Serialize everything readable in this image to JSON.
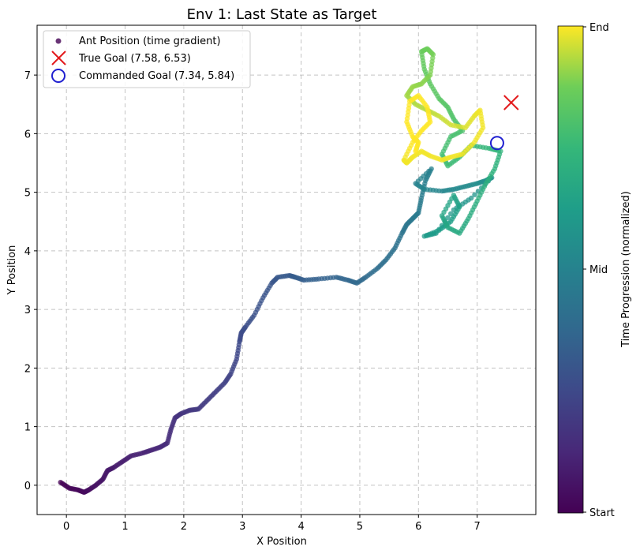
{
  "chart_data": {
    "type": "scatter",
    "title": "Env 1: Last State as Target",
    "xlabel": "X Position",
    "ylabel": "Y Position",
    "xlim": [
      -0.5,
      8.0
    ],
    "ylim": [
      -0.5,
      7.85
    ],
    "xticks": [
      "0",
      "1",
      "2",
      "3",
      "4",
      "5",
      "6",
      "7"
    ],
    "yticks": [
      "0",
      "1",
      "2",
      "3",
      "4",
      "5",
      "6",
      "7"
    ],
    "grid": true,
    "legend_position": "top-left",
    "colormap": "viridis",
    "colorbar": {
      "label": "Time Progression (normalized)",
      "ticks": [
        "Start",
        "Mid",
        "End"
      ]
    },
    "series": [
      {
        "name": "Ant Position (time gradient)",
        "marker": "circle",
        "color": "#440154",
        "x": [
          -0.1,
          0.05,
          0.2,
          0.3,
          0.38,
          0.5,
          0.62,
          0.7,
          0.8,
          0.95,
          1.1,
          1.3,
          1.45,
          1.6,
          1.72,
          1.78,
          1.85,
          1.95,
          2.1,
          2.25,
          2.4,
          2.55,
          2.7,
          2.8,
          2.9,
          2.95,
          2.98,
          3.05,
          3.2,
          3.35,
          3.5,
          3.6,
          3.8,
          3.9,
          4.05,
          4.3,
          4.6,
          4.8,
          4.95,
          5.1,
          5.3,
          5.45,
          5.6,
          5.72,
          5.8,
          5.9,
          6.0,
          6.05,
          6.12,
          6.22,
          5.95,
          6.1,
          6.4,
          6.6,
          6.8,
          7.0,
          7.15,
          7.25,
          6.9,
          6.6,
          6.3,
          6.1,
          6.35,
          6.55,
          6.7,
          6.6,
          6.4,
          6.5,
          6.7,
          6.85,
          7.0,
          7.15,
          7.3,
          7.4,
          7.2,
          6.9,
          6.7,
          6.5,
          6.4,
          6.55,
          6.75,
          6.6,
          6.5,
          6.35,
          6.2,
          6.1,
          6.05,
          6.15,
          6.25,
          6.2,
          6.05,
          5.9,
          5.8,
          5.95,
          6.15,
          6.35,
          6.55,
          6.8,
          6.95,
          7.05,
          7.1,
          6.95,
          6.75,
          6.55,
          6.4,
          6.2,
          6.05,
          5.9,
          5.8,
          5.75,
          5.9,
          6.05,
          6.2,
          6.15,
          6.0,
          5.85,
          5.8,
          5.9,
          6.0,
          5.95
        ],
        "y": [
          0.05,
          -0.05,
          -0.08,
          -0.12,
          -0.08,
          0.0,
          0.1,
          0.25,
          0.3,
          0.4,
          0.5,
          0.55,
          0.6,
          0.65,
          0.72,
          0.95,
          1.15,
          1.22,
          1.28,
          1.3,
          1.45,
          1.6,
          1.75,
          1.9,
          2.15,
          2.45,
          2.6,
          2.7,
          2.9,
          3.2,
          3.45,
          3.55,
          3.58,
          3.55,
          3.5,
          3.52,
          3.55,
          3.5,
          3.45,
          3.55,
          3.7,
          3.85,
          4.05,
          4.3,
          4.45,
          4.55,
          4.65,
          4.9,
          5.2,
          5.4,
          5.15,
          5.05,
          5.02,
          5.05,
          5.1,
          5.15,
          5.2,
          5.25,
          4.9,
          4.7,
          4.3,
          4.25,
          4.35,
          4.5,
          4.75,
          4.95,
          4.6,
          4.4,
          4.3,
          4.55,
          4.85,
          5.15,
          5.4,
          5.7,
          5.75,
          5.8,
          5.6,
          5.45,
          5.65,
          5.95,
          6.05,
          6.25,
          6.45,
          6.6,
          6.85,
          7.1,
          7.4,
          7.45,
          7.35,
          7.0,
          6.85,
          6.8,
          6.65,
          6.5,
          6.4,
          6.3,
          6.15,
          6.1,
          6.3,
          6.4,
          6.1,
          5.85,
          5.65,
          5.6,
          5.55,
          5.62,
          5.7,
          5.6,
          5.5,
          5.55,
          5.85,
          6.05,
          6.2,
          6.45,
          6.65,
          6.55,
          6.2,
          5.95,
          5.85,
          5.7
        ],
        "t": [
          0.0,
          0.01,
          0.02,
          0.03,
          0.04,
          0.05,
          0.06,
          0.07,
          0.08,
          0.09,
          0.1,
          0.11,
          0.12,
          0.13,
          0.14,
          0.15,
          0.16,
          0.17,
          0.18,
          0.19,
          0.2,
          0.21,
          0.22,
          0.23,
          0.24,
          0.25,
          0.26,
          0.27,
          0.28,
          0.29,
          0.3,
          0.31,
          0.32,
          0.33,
          0.34,
          0.35,
          0.36,
          0.37,
          0.38,
          0.39,
          0.4,
          0.41,
          0.42,
          0.43,
          0.44,
          0.45,
          0.46,
          0.47,
          0.48,
          0.49,
          0.5,
          0.51,
          0.52,
          0.53,
          0.54,
          0.55,
          0.56,
          0.57,
          0.58,
          0.59,
          0.6,
          0.61,
          0.62,
          0.63,
          0.64,
          0.65,
          0.66,
          0.67,
          0.68,
          0.69,
          0.7,
          0.71,
          0.72,
          0.73,
          0.74,
          0.75,
          0.76,
          0.77,
          0.78,
          0.79,
          0.8,
          0.81,
          0.82,
          0.83,
          0.84,
          0.85,
          0.86,
          0.87,
          0.88,
          0.89,
          0.9,
          0.91,
          0.92,
          0.93,
          0.94,
          0.95,
          0.96,
          0.97,
          0.98,
          0.99,
          0.99,
          0.99,
          0.99,
          0.99,
          0.99,
          0.99,
          0.99,
          0.99,
          0.99,
          0.99,
          1.0,
          1.0,
          1.0,
          1.0,
          1.0,
          1.0,
          1.0,
          1.0,
          1.0,
          1.0
        ]
      },
      {
        "name": "True Goal (7.58, 6.53)",
        "marker": "x",
        "color": "#e31a1c",
        "x": [
          7.58
        ],
        "y": [
          6.53
        ]
      },
      {
        "name": "Commanded Goal (7.34, 5.84)",
        "marker": "open-circle",
        "color": "#1f1fd0",
        "x": [
          7.34
        ],
        "y": [
          5.84
        ]
      }
    ]
  }
}
